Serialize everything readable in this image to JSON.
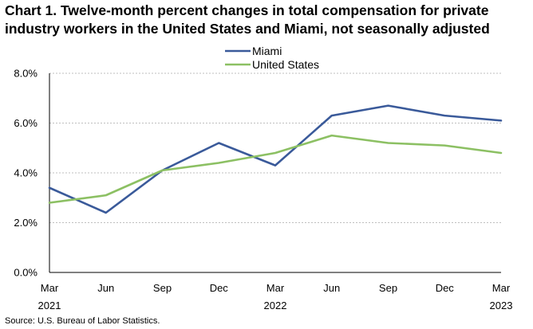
{
  "chart_data": {
    "type": "line",
    "title": "Chart 1. Twelve-month percent changes in total compensation for private industry workers in the United States and Miami, not seasonally adjusted",
    "categories": [
      "Mar 2021",
      "Jun",
      "Sep",
      "Dec",
      "Mar 2022",
      "Jun",
      "Sep",
      "Dec",
      "Mar 2023"
    ],
    "x_tick_labels": [
      {
        "month": "Mar",
        "year": "2021"
      },
      {
        "month": "Jun",
        "year": ""
      },
      {
        "month": "Sep",
        "year": ""
      },
      {
        "month": "Dec",
        "year": ""
      },
      {
        "month": "Mar",
        "year": "2022"
      },
      {
        "month": "Jun",
        "year": ""
      },
      {
        "month": "Sep",
        "year": ""
      },
      {
        "month": "Dec",
        "year": ""
      },
      {
        "month": "Mar",
        "year": "2023"
      }
    ],
    "y_tick_labels": [
      "0.0%",
      "2.0%",
      "4.0%",
      "6.0%",
      "8.0%"
    ],
    "ylim": [
      0,
      8
    ],
    "y_ticks": [
      0,
      2,
      4,
      6,
      8
    ],
    "grid": true,
    "legend_position": "top-center",
    "series": [
      {
        "name": "Miami",
        "color": "#3a5a9a",
        "values": [
          3.4,
          2.4,
          4.1,
          5.2,
          4.3,
          6.3,
          6.7,
          6.3,
          6.1
        ]
      },
      {
        "name": "United States",
        "color": "#8cc063",
        "values": [
          2.8,
          3.1,
          4.1,
          4.4,
          4.8,
          5.5,
          5.2,
          5.1,
          4.8
        ]
      }
    ]
  },
  "source": "Source: U.S. Bureau of Labor Statistics."
}
